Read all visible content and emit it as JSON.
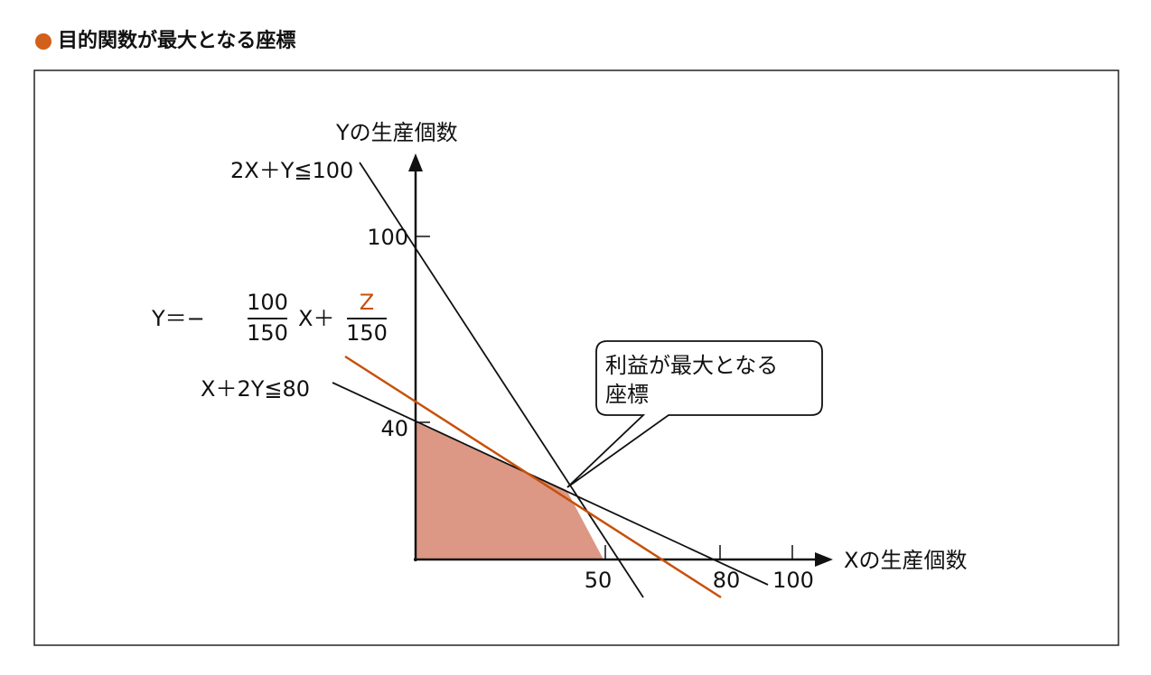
{
  "header": {
    "title": "目的関数が最大となる座標"
  },
  "diagram": {
    "y_axis_label": "Yの生産個数",
    "x_axis_label": "Xの生産個数",
    "constraints": [
      "2X＋Y≦100",
      "X＋2Y≦80"
    ],
    "objective": {
      "prefix": "Y＝−",
      "coef_numerator": "100",
      "coef_denominator": "150",
      "middle": "X＋",
      "z_numerator": "Z",
      "z_denominator": "150"
    },
    "y_ticks": [
      "100",
      "40"
    ],
    "x_ticks": [
      "50",
      "80",
      "100"
    ],
    "callout": [
      "利益が最大となる",
      "座標"
    ]
  }
}
